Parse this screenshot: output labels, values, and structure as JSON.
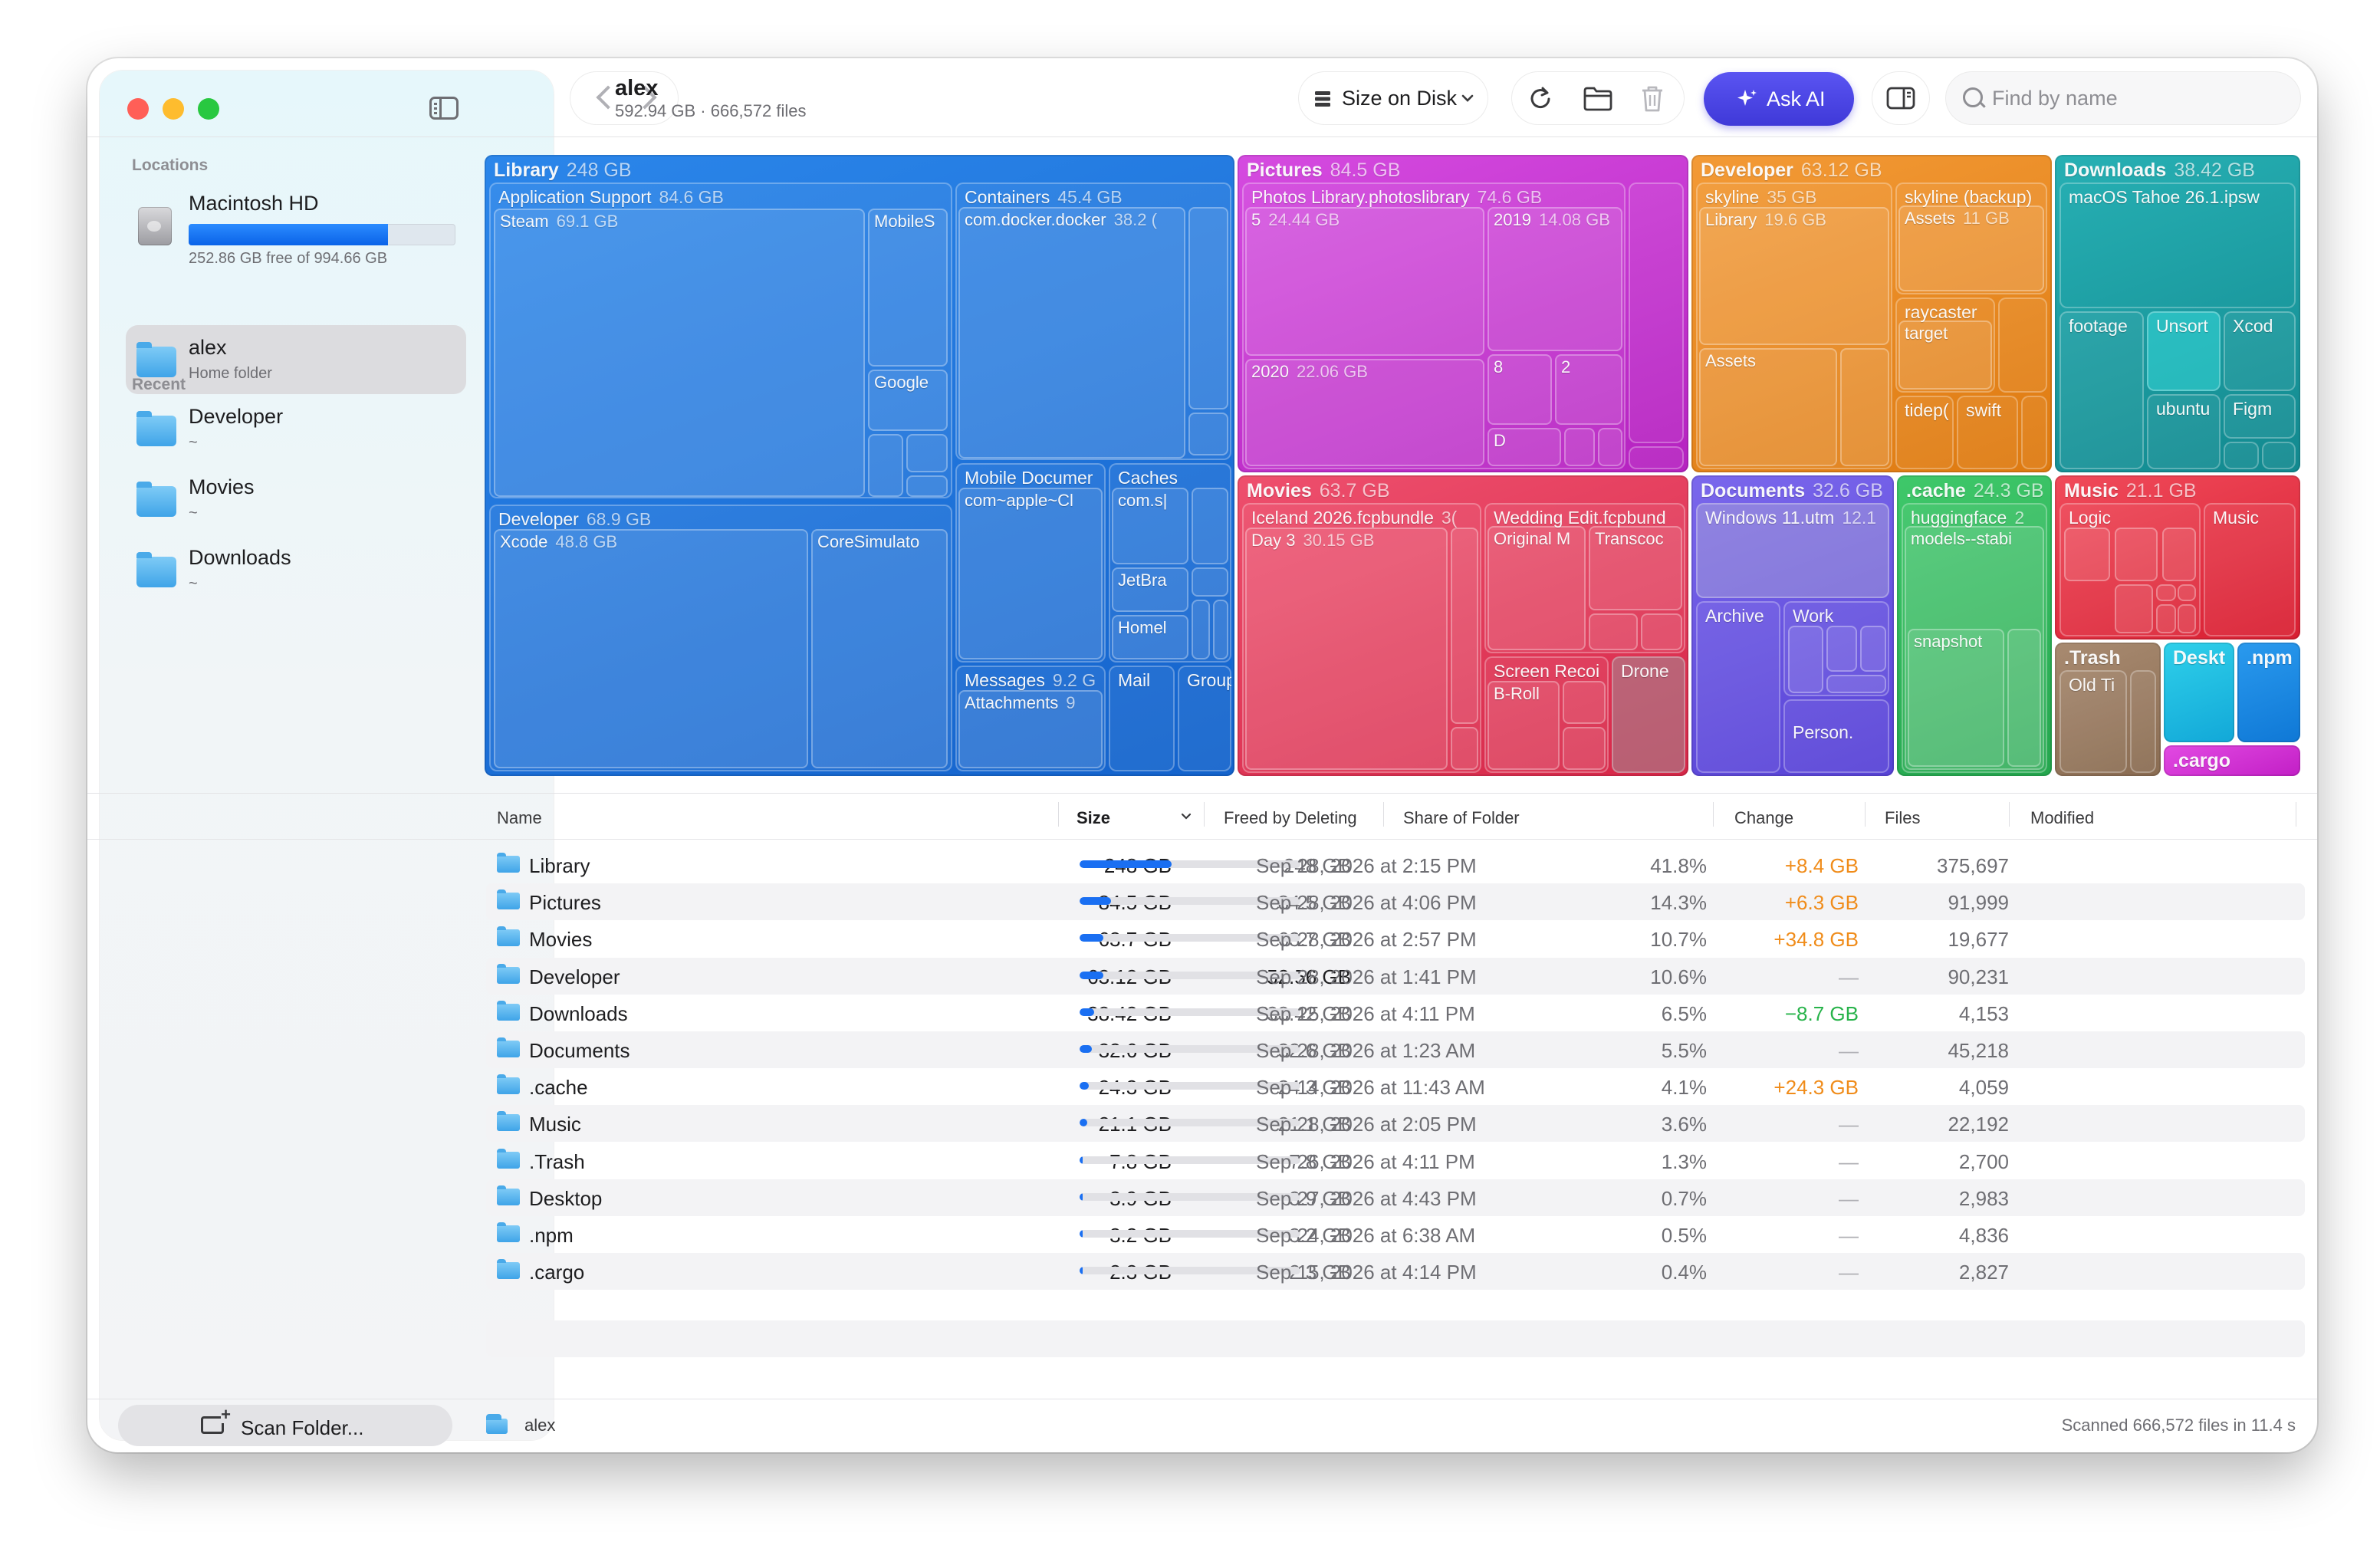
{
  "sidebar": {
    "locations_label": "Locations",
    "recent_label": "Recent",
    "disk": {
      "name": "Macintosh HD",
      "free_text": "252.86 GB free of 994.66 GB",
      "used_fraction": 0.746
    },
    "home": {
      "name": "alex",
      "sub": "Home folder"
    },
    "recent": [
      {
        "name": "Developer",
        "sub": "~"
      },
      {
        "name": "Movies",
        "sub": "~"
      },
      {
        "name": "Downloads",
        "sub": "~"
      }
    ],
    "scan_button": "Scan Folder..."
  },
  "header": {
    "title": "alex",
    "subtitle": "592.94 GB · 666,572 files",
    "size_mode": "Size on Disk",
    "ask_ai": "Ask AI",
    "search_placeholder": "Find by name"
  },
  "colors": {
    "library": "#1a73d9",
    "pictures": "#c92fd0",
    "developer": "#f08a1c",
    "downloads": "#17a3a8",
    "movies": "#e8385c",
    "documents": "#6a55e0",
    "cache": "#2fb85a",
    "music": "#e62b3d",
    "trash": "#9a7a60",
    "desktop": "#18b8e0",
    "npm": "#1a8ee0",
    "cargo": "#d42fd2",
    "accent": "#1a6ff2",
    "increase": "#f08c1a",
    "decrease": "#27b34a"
  },
  "treemap": {
    "library": {
      "name": "Library",
      "size": "248 GB",
      "app_support": {
        "name": "Application Support",
        "size": "84.6 GB",
        "steam": {
          "name": "Steam",
          "size": "69.1 GB"
        },
        "mobiles": {
          "name": "MobileS"
        },
        "google": {
          "name": "Google"
        }
      },
      "containers": {
        "name": "Containers",
        "size": "45.4 GB",
        "docker": {
          "name": "com.docker.docker",
          "size": "38.2 ("
        }
      },
      "mobile_docs": {
        "name": "Mobile Documer",
        "child": "com~apple~Cl"
      },
      "caches": {
        "name": "Caches",
        "c1": "com.s|",
        "c2": "JetBra",
        "c3": "Homel"
      },
      "messages": {
        "name": "Messages",
        "size": "9.2 G",
        "child": "Attachments",
        "child_size": "9"
      },
      "mail": {
        "name": "Mail"
      },
      "group": {
        "name": "Group"
      },
      "developer": {
        "name": "Developer",
        "size": "68.9 GB",
        "xcode": {
          "name": "Xcode",
          "size": "48.8 GB"
        },
        "coresim": {
          "name": "CoreSimulato"
        }
      }
    },
    "pictures": {
      "name": "Pictures",
      "size": "84.5 GB",
      "photos": {
        "name": "Photos Library.photoslibrary",
        "size": "74.6 GB",
        "p5": {
          "name": "5",
          "size": "24.44 GB"
        },
        "p2019": {
          "name": "2019",
          "size": "14.08 GB"
        },
        "p2020": {
          "name": "2020",
          "size": "22.06 GB"
        },
        "p8": {
          "name": "8"
        },
        "p2": {
          "name": "2"
        },
        "pd": {
          "name": "D"
        }
      }
    },
    "movies": {
      "name": "Movies",
      "size": "63.7 GB",
      "iceland": {
        "name": "Iceland 2026.fcpbundle",
        "size": "3(",
        "day3": {
          "name": "Day 3",
          "size": "30.15 GB"
        }
      },
      "wedding": {
        "name": "Wedding Edit.fcpbund",
        "original": {
          "name": "Original M"
        },
        "transcode": {
          "name": "Transcoc"
        }
      },
      "screen": {
        "name": "Screen Recoi",
        "broll": "B-Roll"
      },
      "drone": {
        "name": "Drone"
      }
    },
    "developer": {
      "name": "Developer",
      "size": "63.12 GB",
      "skyline": {
        "name": "skyline",
        "size": "35 GB",
        "library": {
          "name": "Library",
          "size": "19.6 GB"
        },
        "assets": {
          "name": "Assets"
        }
      },
      "skyline_backup": {
        "name": "skyline (backup)",
        "assets": {
          "name": "Assets",
          "size": "11 GB"
        }
      },
      "raycaster": {
        "name": "raycaster",
        "target": "target"
      },
      "tidepool": {
        "name": "tidep("
      },
      "swift": {
        "name": "swift"
      }
    },
    "downloads": {
      "name": "Downloads",
      "size": "38.42 GB",
      "macos": {
        "name": "macOS Tahoe 26.1.ipsw"
      },
      "footage": {
        "name": "footage"
      },
      "unsort": {
        "name": "Unsort"
      },
      "xcode": {
        "name": "Xcod"
      },
      "ubuntu": {
        "name": "ubuntu"
      },
      "figma": {
        "name": "Figm"
      }
    },
    "documents": {
      "name": "Documents",
      "size": "32.6 GB",
      "windows": {
        "name": "Windows 11.utm",
        "size": "12.1"
      },
      "archive": {
        "name": "Archive"
      },
      "work": {
        "name": "Work"
      },
      "personal": {
        "name": "Person."
      }
    },
    "cache": {
      "name": ".cache",
      "size": "24.3 GB",
      "hf": {
        "name": "huggingface",
        "size": "2",
        "models": "models--stabi"
      },
      "snapshot": {
        "name": "snapshot"
      }
    },
    "music": {
      "name": "Music",
      "size": "21.1 GB",
      "logic": {
        "name": "Logic"
      },
      "music": {
        "name": "Music"
      }
    },
    "trash": {
      "name": ".Trash",
      "old": "Old Ti"
    },
    "desktop": {
      "name": "Deskt"
    },
    "npm": {
      "name": ".npm"
    },
    "cargo": {
      "name": ".cargo"
    }
  },
  "table": {
    "columns": [
      "Name",
      "Size",
      "Freed by Deleting",
      "Share of Folder",
      "Change",
      "Files",
      "Modified"
    ],
    "rows": [
      {
        "name": "Library",
        "size": "248 GB",
        "freed": "248 GB",
        "share": "41.8%",
        "share_value": 0.418,
        "change": "+8.4 GB",
        "change_type": "up",
        "files": "375,697",
        "modified": "Sep 28, 2026 at 2:15 PM"
      },
      {
        "name": "Pictures",
        "size": "84.5 GB",
        "freed": "84.5 GB",
        "share": "14.3%",
        "share_value": 0.143,
        "change": "+6.3 GB",
        "change_type": "up",
        "files": "91,999",
        "modified": "Sep 28, 2026 at 4:06 PM"
      },
      {
        "name": "Movies",
        "size": "63.7 GB",
        "freed": "63.7 GB",
        "share": "10.7%",
        "share_value": 0.107,
        "change": "+34.8 GB",
        "change_type": "up",
        "files": "19,677",
        "modified": "Sep 28, 2026 at 2:57 PM"
      },
      {
        "name": "Developer",
        "size": "63.12 GB",
        "freed": "52.56 GB",
        "share": "10.6%",
        "share_value": 0.106,
        "change": "—",
        "change_type": "none",
        "files": "90,231",
        "modified": "Sep 28, 2026 at 1:41 PM"
      },
      {
        "name": "Downloads",
        "size": "38.42 GB",
        "freed": "38.42 GB",
        "share": "6.5%",
        "share_value": 0.065,
        "change": "−8.7 GB",
        "change_type": "down",
        "files": "4,153",
        "modified": "Sep 25, 2026 at 4:11 PM"
      },
      {
        "name": "Documents",
        "size": "32.6 GB",
        "freed": "32.6 GB",
        "share": "5.5%",
        "share_value": 0.055,
        "change": "—",
        "change_type": "none",
        "files": "45,218",
        "modified": "Sep 28, 2026 at 1:23 AM"
      },
      {
        "name": ".cache",
        "size": "24.3 GB",
        "freed": "24.3 GB",
        "share": "4.1%",
        "share_value": 0.041,
        "change": "+24.3 GB",
        "change_type": "up",
        "files": "4,059",
        "modified": "Sep 14, 2026 at 11:43 AM"
      },
      {
        "name": "Music",
        "size": "21.1 GB",
        "freed": "21.1 GB",
        "share": "3.6%",
        "share_value": 0.036,
        "change": "—",
        "change_type": "none",
        "files": "22,192",
        "modified": "Sep 28, 2026 at 2:05 PM"
      },
      {
        "name": ".Trash",
        "size": "7.8 GB",
        "freed": "7.8 GB",
        "share": "1.3%",
        "share_value": 0.013,
        "change": "—",
        "change_type": "none",
        "files": "2,700",
        "modified": "Sep 26, 2026 at 4:11 PM"
      },
      {
        "name": "Desktop",
        "size": "3.9 GB",
        "freed": "3.9 GB",
        "share": "0.7%",
        "share_value": 0.007,
        "change": "—",
        "change_type": "none",
        "files": "2,983",
        "modified": "Sep 27, 2026 at 4:43 PM"
      },
      {
        "name": ".npm",
        "size": "3.2 GB",
        "freed": "3.2 GB",
        "share": "0.5%",
        "share_value": 0.005,
        "change": "—",
        "change_type": "none",
        "files": "4,836",
        "modified": "Sep 24, 2026 at 6:38 AM"
      },
      {
        "name": ".cargo",
        "size": "2.3 GB",
        "freed": "2.3 GB",
        "share": "0.4%",
        "share_value": 0.004,
        "change": "—",
        "change_type": "none",
        "files": "2,827",
        "modified": "Sep 15, 2026 at 4:14 PM"
      }
    ]
  },
  "status": {
    "path": "alex",
    "scanned": "Scanned 666,572 files in 11.4 s"
  }
}
